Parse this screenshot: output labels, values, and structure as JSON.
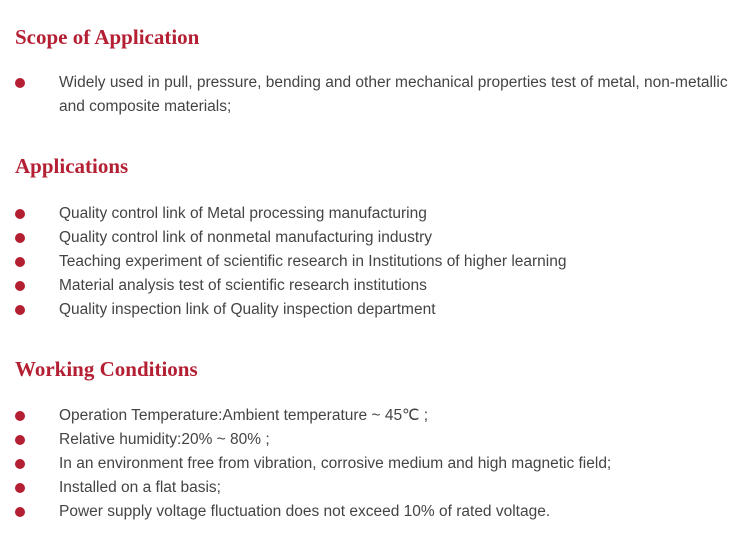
{
  "accent_color": "#b41f33",
  "sections": [
    {
      "title": "Scope of Application",
      "items": [
        "Widely used in pull, pressure, bending and other mechanical properties test of metal, non-metallic and composite materials;"
      ]
    },
    {
      "title": "Applications",
      "items": [
        "Quality control link of Metal processing manufacturing",
        "Quality control link of nonmetal manufacturing industry",
        "Teaching experiment of scientific research in Institutions of higher learning",
        "Material analysis test of scientific research institutions",
        "Quality inspection link of Quality inspection department"
      ]
    },
    {
      "title": "Working Conditions",
      "items": [
        "Operation Temperature:Ambient temperature ~ 45℃ ;",
        "Relative humidity:20% ~ 80% ;",
        "In an environment free from vibration, corrosive medium and high magnetic field;",
        "Installed on a flat basis;",
        "Power supply voltage fluctuation does not exceed 10% of rated voltage."
      ]
    }
  ]
}
